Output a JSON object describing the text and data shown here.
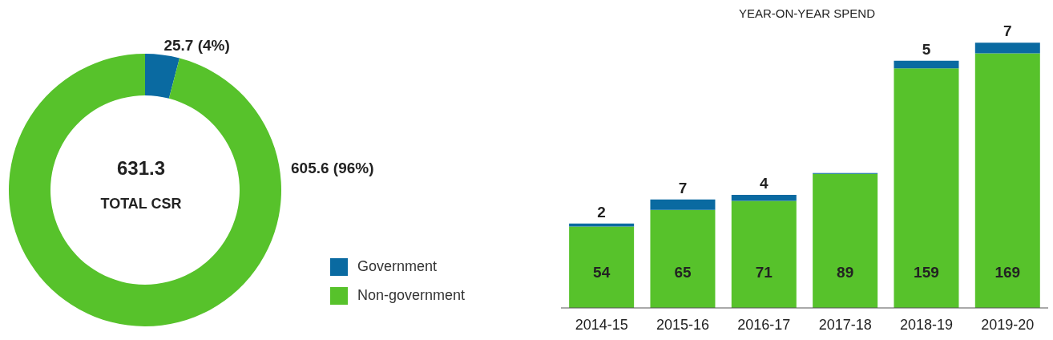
{
  "chart_data": [
    {
      "type": "donut",
      "categories": [
        "Government",
        "Non-government"
      ],
      "values": [
        25.7,
        605.6
      ],
      "colors": [
        "#0a6aa1",
        "#57c22b"
      ],
      "value_labels": [
        "25.7 (4%)",
        "605.6 (96%)"
      ],
      "annotations": [
        "631.3",
        "TOTAL CSR"
      ],
      "legend": "bottom right"
    },
    {
      "type": "bar",
      "title": "YEAR-ON-YEAR SPEND",
      "categories": [
        "2014-15",
        "2015-16",
        "2016-17",
        "2017-18",
        "2018-19",
        "2019-20"
      ],
      "stacked": true,
      "series": [
        {
          "color": "#57c22b",
          "values": [
            54,
            65,
            71,
            89,
            159,
            169
          ],
          "value_labels": [
            "54",
            "65",
            "71",
            "89",
            "159",
            "169"
          ]
        },
        {
          "color": "#0a6aa1",
          "values": [
            2,
            7,
            4,
            0.5,
            5,
            7
          ],
          "value_labels": [
            "2",
            "7",
            "4",
            null,
            "5",
            "7"
          ]
        }
      ]
    }
  ]
}
